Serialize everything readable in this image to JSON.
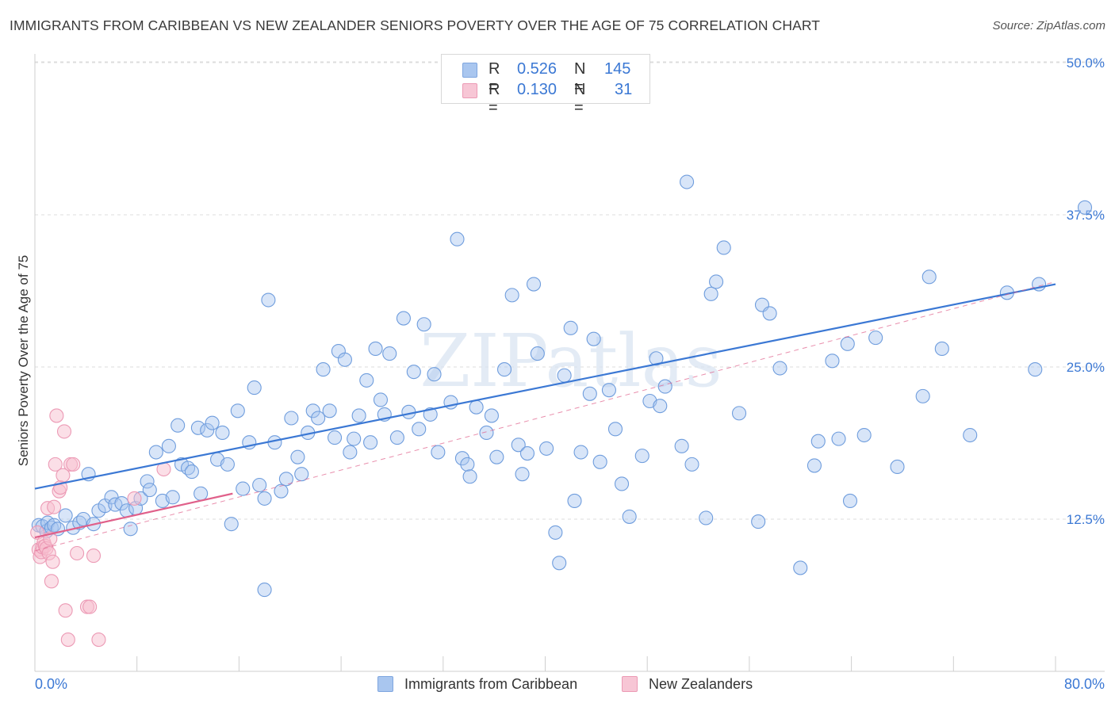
{
  "title": "IMMIGRANTS FROM CARIBBEAN VS NEW ZEALANDER SENIORS POVERTY OVER THE AGE OF 75 CORRELATION CHART",
  "source": "Source: ZipAtlas.com",
  "watermark": "ZIPatlas",
  "legend": {
    "rows": [
      {
        "r_label": "R =",
        "r_value": "0.526",
        "n_label": "N =",
        "n_value": "145",
        "color": "#8fb3e8"
      },
      {
        "r_label": "R =",
        "r_value": "0.130",
        "n_label": "N =",
        "n_value": "31",
        "color": "#f2a7bf"
      }
    ]
  },
  "bottom_legend": {
    "series1": "Immigrants from Caribbean",
    "series2": "New Zealanders"
  },
  "chart_data": {
    "type": "scatter",
    "xlabel": "",
    "ylabel": "Seniors Poverty Over the Age of 75",
    "xlim": [
      0,
      80
    ],
    "ylim": [
      0,
      50
    ],
    "x_tick_labels": [
      "0.0%",
      "80.0%"
    ],
    "y_tick_labels": [
      "12.5%",
      "25.0%",
      "37.5%",
      "50.0%"
    ],
    "y_ticks": [
      12.5,
      25.0,
      37.5,
      50.0
    ],
    "grid": "horizontal dashed",
    "legend_position": "top-center",
    "colors": {
      "caribbean": "#3b78d4",
      "caribbean_fill": "#a9c6ef",
      "nz": "#e0608a",
      "nz_fill": "#f7bfd0",
      "tick_label": "#3b78d4"
    },
    "series": [
      {
        "name": "Immigrants from Caribbean",
        "trend": {
          "x": [
            0,
            80
          ],
          "y": [
            15.0,
            31.8
          ]
        },
        "points": [
          [
            0.3,
            12.0
          ],
          [
            0.6,
            11.9
          ],
          [
            0.9,
            11.5
          ],
          [
            1.0,
            12.2
          ],
          [
            1.3,
            11.8
          ],
          [
            1.5,
            12.0
          ],
          [
            1.8,
            11.7
          ],
          [
            2.4,
            12.8
          ],
          [
            3.0,
            11.8
          ],
          [
            3.5,
            12.2
          ],
          [
            3.8,
            12.5
          ],
          [
            4.2,
            16.2
          ],
          [
            4.6,
            12.1
          ],
          [
            5.0,
            13.2
          ],
          [
            5.5,
            13.6
          ],
          [
            6.0,
            14.3
          ],
          [
            6.3,
            13.7
          ],
          [
            6.8,
            13.8
          ],
          [
            7.2,
            13.2
          ],
          [
            7.5,
            11.7
          ],
          [
            7.9,
            13.4
          ],
          [
            8.3,
            14.2
          ],
          [
            8.8,
            15.6
          ],
          [
            9.0,
            14.9
          ],
          [
            9.5,
            18.0
          ],
          [
            10.0,
            14.0
          ],
          [
            10.5,
            18.5
          ],
          [
            10.8,
            14.3
          ],
          [
            11.2,
            20.2
          ],
          [
            11.5,
            17.0
          ],
          [
            12.0,
            16.7
          ],
          [
            12.3,
            16.4
          ],
          [
            12.8,
            20.0
          ],
          [
            13.0,
            14.6
          ],
          [
            13.5,
            19.8
          ],
          [
            13.9,
            20.4
          ],
          [
            14.3,
            17.4
          ],
          [
            14.7,
            19.6
          ],
          [
            15.1,
            17.0
          ],
          [
            15.4,
            12.1
          ],
          [
            15.9,
            21.4
          ],
          [
            16.3,
            15.0
          ],
          [
            16.8,
            18.8
          ],
          [
            17.2,
            23.3
          ],
          [
            17.6,
            15.3
          ],
          [
            18.0,
            14.2
          ],
          [
            18.3,
            30.5
          ],
          [
            18.8,
            18.8
          ],
          [
            19.3,
            14.8
          ],
          [
            19.7,
            15.8
          ],
          [
            20.1,
            20.8
          ],
          [
            20.6,
            17.6
          ],
          [
            20.9,
            16.2
          ],
          [
            21.4,
            19.6
          ],
          [
            21.8,
            21.4
          ],
          [
            22.2,
            20.8
          ],
          [
            22.6,
            24.8
          ],
          [
            23.1,
            21.4
          ],
          [
            23.5,
            19.2
          ],
          [
            23.8,
            26.3
          ],
          [
            24.3,
            25.6
          ],
          [
            24.7,
            18.0
          ],
          [
            25.0,
            19.1
          ],
          [
            25.4,
            21.0
          ],
          [
            26.0,
            23.9
          ],
          [
            26.3,
            18.8
          ],
          [
            26.7,
            26.5
          ],
          [
            27.1,
            22.3
          ],
          [
            27.4,
            21.1
          ],
          [
            27.8,
            26.1
          ],
          [
            28.4,
            19.2
          ],
          [
            28.9,
            29.0
          ],
          [
            29.3,
            21.3
          ],
          [
            29.7,
            24.6
          ],
          [
            30.1,
            19.9
          ],
          [
            30.5,
            28.5
          ],
          [
            31.0,
            21.1
          ],
          [
            31.3,
            24.4
          ],
          [
            31.6,
            18.0
          ],
          [
            32.6,
            22.1
          ],
          [
            33.1,
            35.5
          ],
          [
            33.5,
            17.5
          ],
          [
            33.9,
            17.0
          ],
          [
            34.1,
            16.0
          ],
          [
            34.6,
            21.7
          ],
          [
            35.4,
            19.6
          ],
          [
            35.8,
            21.0
          ],
          [
            36.2,
            17.6
          ],
          [
            36.8,
            24.8
          ],
          [
            37.4,
            30.9
          ],
          [
            37.9,
            18.6
          ],
          [
            38.2,
            16.2
          ],
          [
            38.6,
            17.9
          ],
          [
            39.1,
            31.8
          ],
          [
            39.4,
            26.1
          ],
          [
            40.1,
            18.3
          ],
          [
            40.8,
            11.4
          ],
          [
            41.1,
            8.9
          ],
          [
            41.5,
            24.3
          ],
          [
            42.0,
            28.2
          ],
          [
            42.3,
            14.0
          ],
          [
            42.8,
            18.0
          ],
          [
            43.5,
            22.8
          ],
          [
            43.8,
            27.3
          ],
          [
            44.3,
            17.2
          ],
          [
            45.0,
            23.1
          ],
          [
            45.5,
            19.9
          ],
          [
            46.0,
            15.4
          ],
          [
            46.6,
            12.7
          ],
          [
            47.6,
            17.7
          ],
          [
            48.2,
            22.2
          ],
          [
            48.7,
            25.7
          ],
          [
            49.0,
            21.8
          ],
          [
            49.4,
            23.4
          ],
          [
            50.7,
            18.5
          ],
          [
            51.1,
            40.2
          ],
          [
            51.5,
            17.0
          ],
          [
            52.6,
            12.6
          ],
          [
            53.0,
            31.0
          ],
          [
            53.4,
            32.0
          ],
          [
            54.0,
            34.8
          ],
          [
            55.2,
            21.2
          ],
          [
            56.7,
            12.3
          ],
          [
            57.0,
            30.1
          ],
          [
            57.6,
            29.4
          ],
          [
            58.4,
            24.9
          ],
          [
            60.0,
            8.5
          ],
          [
            61.1,
            16.9
          ],
          [
            61.4,
            18.9
          ],
          [
            62.5,
            25.5
          ],
          [
            63.0,
            19.1
          ],
          [
            63.7,
            26.9
          ],
          [
            63.9,
            14.0
          ],
          [
            65.0,
            19.4
          ],
          [
            65.9,
            27.4
          ],
          [
            67.6,
            16.8
          ],
          [
            69.6,
            22.6
          ],
          [
            70.1,
            32.4
          ],
          [
            71.1,
            26.5
          ],
          [
            73.3,
            19.4
          ],
          [
            76.2,
            31.1
          ],
          [
            78.4,
            24.8
          ],
          [
            78.7,
            31.8
          ],
          [
            82.3,
            38.1
          ],
          [
            18.0,
            6.7
          ]
        ]
      },
      {
        "name": "New Zealanders",
        "trend": {
          "x": [
            0,
            15.5
          ],
          "y": [
            11.0,
            14.6
          ]
        },
        "trend_dashed": {
          "x": [
            0,
            80
          ],
          "y": [
            9.9,
            32.0
          ]
        },
        "points": [
          [
            0.2,
            11.4
          ],
          [
            0.3,
            10.0
          ],
          [
            0.4,
            9.4
          ],
          [
            0.5,
            9.8
          ],
          [
            0.6,
            10.2
          ],
          [
            0.7,
            10.6
          ],
          [
            0.8,
            10.3
          ],
          [
            0.9,
            10.1
          ],
          [
            1.0,
            13.4
          ],
          [
            1.1,
            9.7
          ],
          [
            1.2,
            10.9
          ],
          [
            1.3,
            7.4
          ],
          [
            1.4,
            9.0
          ],
          [
            1.5,
            13.5
          ],
          [
            1.6,
            17.0
          ],
          [
            1.7,
            21.0
          ],
          [
            1.9,
            14.8
          ],
          [
            2.0,
            15.1
          ],
          [
            2.2,
            16.1
          ],
          [
            2.3,
            19.7
          ],
          [
            2.4,
            5.0
          ],
          [
            2.6,
            2.6
          ],
          [
            2.8,
            17.0
          ],
          [
            3.0,
            17.0
          ],
          [
            3.3,
            9.7
          ],
          [
            4.1,
            5.3
          ],
          [
            4.3,
            5.3
          ],
          [
            4.6,
            9.5
          ],
          [
            5.0,
            2.6
          ],
          [
            7.8,
            14.2
          ],
          [
            10.1,
            16.6
          ]
        ]
      }
    ]
  }
}
